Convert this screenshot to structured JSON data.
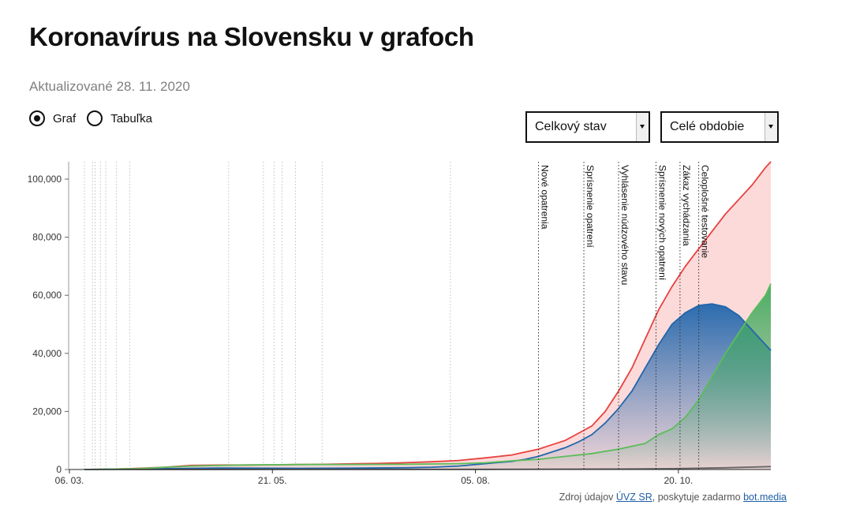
{
  "header": {
    "title": "Koronavírus na Slovensku v grafoch",
    "updated": "Aktualizované 28. 11. 2020"
  },
  "view_toggle": {
    "options": [
      {
        "label": "Graf",
        "checked": true
      },
      {
        "label": "Tabuľka",
        "checked": false
      }
    ]
  },
  "filters": {
    "metric_select": "Celkový stav",
    "period_select": "Celé obdobie"
  },
  "source": {
    "prefix": "Zdroj údajov",
    "link1": "ÚVZ SR",
    "middle": ", poskytuje zadarmo",
    "link2": "bot.media"
  },
  "chart_data": {
    "type": "area",
    "x_ticks": [
      "06. 03.",
      "21. 05.",
      "05. 08.",
      "20. 10."
    ],
    "y_ticks": [
      "0",
      "20,000",
      "40,000",
      "60,000",
      "80,000",
      "100,000"
    ],
    "ylim": [
      0,
      105000
    ],
    "grid": false,
    "colors": {
      "series_red": "#e8413f",
      "series_blue": "#2166ac",
      "series_green": "#5cbd59",
      "series_gray": "#666666"
    },
    "series": [
      {
        "color": "series_red",
        "fill": "solid-light",
        "values": [
          [
            0,
            0
          ],
          [
            10,
            120
          ],
          [
            20,
            400
          ],
          [
            30,
            800
          ],
          [
            40,
            1400
          ],
          [
            50,
            1530
          ],
          [
            60,
            1550
          ],
          [
            70,
            1600
          ],
          [
            80,
            1700
          ],
          [
            90,
            1800
          ],
          [
            100,
            1950
          ],
          [
            110,
            2100
          ],
          [
            120,
            2350
          ],
          [
            130,
            2650
          ],
          [
            140,
            3100
          ],
          [
            150,
            4000
          ],
          [
            160,
            5000
          ],
          [
            165,
            6000
          ],
          [
            170,
            7000
          ],
          [
            175,
            8500
          ],
          [
            180,
            10000
          ],
          [
            185,
            12500
          ],
          [
            190,
            15000
          ],
          [
            195,
            20000
          ],
          [
            200,
            27000
          ],
          [
            205,
            35000
          ],
          [
            210,
            45000
          ],
          [
            215,
            55000
          ],
          [
            220,
            63000
          ],
          [
            225,
            70000
          ],
          [
            230,
            76000
          ],
          [
            235,
            82000
          ],
          [
            240,
            88000
          ],
          [
            245,
            93000
          ],
          [
            250,
            98000
          ],
          [
            255,
            104000
          ],
          [
            257,
            106000
          ]
        ]
      },
      {
        "color": "series_blue",
        "fill": "gradient",
        "values": [
          [
            0,
            0
          ],
          [
            30,
            300
          ],
          [
            50,
            500
          ],
          [
            80,
            400
          ],
          [
            100,
            450
          ],
          [
            120,
            600
          ],
          [
            130,
            800
          ],
          [
            140,
            1200
          ],
          [
            150,
            2000
          ],
          [
            160,
            2800
          ],
          [
            165,
            3500
          ],
          [
            170,
            4500
          ],
          [
            175,
            6000
          ],
          [
            180,
            7500
          ],
          [
            185,
            9500
          ],
          [
            190,
            12000
          ],
          [
            195,
            16000
          ],
          [
            200,
            21000
          ],
          [
            205,
            27000
          ],
          [
            210,
            35000
          ],
          [
            215,
            43000
          ],
          [
            220,
            50000
          ],
          [
            225,
            54000
          ],
          [
            230,
            56500
          ],
          [
            235,
            57000
          ],
          [
            240,
            56000
          ],
          [
            245,
            53000
          ],
          [
            250,
            48000
          ],
          [
            255,
            43000
          ],
          [
            257,
            41000
          ]
        ]
      },
      {
        "color": "series_green",
        "fill": "gradient",
        "values": [
          [
            0,
            0
          ],
          [
            20,
            300
          ],
          [
            40,
            1200
          ],
          [
            60,
            1550
          ],
          [
            80,
            1700
          ],
          [
            100,
            1750
          ],
          [
            120,
            1800
          ],
          [
            140,
            2000
          ],
          [
            150,
            2300
          ],
          [
            160,
            3000
          ],
          [
            170,
            3500
          ],
          [
            180,
            4500
          ],
          [
            190,
            5500
          ],
          [
            200,
            7000
          ],
          [
            210,
            9000
          ],
          [
            215,
            12000
          ],
          [
            220,
            14000
          ],
          [
            225,
            18000
          ],
          [
            230,
            24000
          ],
          [
            235,
            32000
          ],
          [
            240,
            40000
          ],
          [
            245,
            47000
          ],
          [
            250,
            54000
          ],
          [
            255,
            60000
          ],
          [
            257,
            64000
          ]
        ]
      },
      {
        "color": "series_gray",
        "fill": "none",
        "values": [
          [
            0,
            0
          ],
          [
            150,
            50
          ],
          [
            200,
            150
          ],
          [
            220,
            300
          ],
          [
            240,
            600
          ],
          [
            257,
            1000
          ]
        ]
      }
    ],
    "minor_event_days": [
      0,
      3,
      4,
      6,
      8,
      12,
      17,
      54,
      67,
      71,
      74,
      79,
      89,
      137
    ],
    "annotations": [
      {
        "day": 170,
        "label": "Nové opatrenia"
      },
      {
        "day": 187,
        "label": "Sprísnenie opatrení"
      },
      {
        "day": 200,
        "label": "Vyhlásenie núdzového stavu"
      },
      {
        "day": 214,
        "label": "Sprísnenie nových opatrení"
      },
      {
        "day": 223,
        "label": "Zákaz vychádzania"
      },
      {
        "day": 230,
        "label": "Celoplošné testovanie"
      }
    ]
  }
}
